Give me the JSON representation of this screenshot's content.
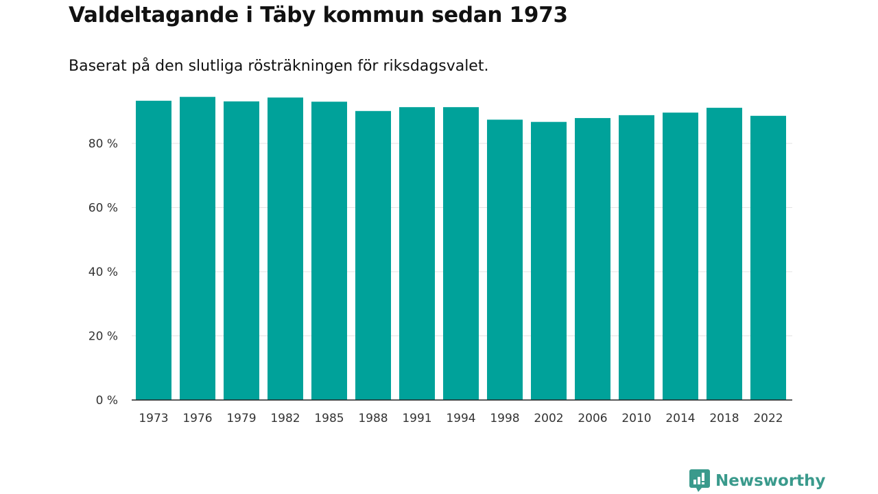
{
  "chart_data": {
    "type": "bar",
    "title": "Valdeltagande i Täby kommun sedan 1973",
    "subtitle": "Baserat på den slutliga rösträkningen för riksdagsvalet.",
    "xlabel": "",
    "ylabel": "",
    "categories": [
      "1973",
      "1976",
      "1979",
      "1982",
      "1985",
      "1988",
      "1991",
      "1994",
      "1998",
      "2002",
      "2006",
      "2010",
      "2014",
      "2018",
      "2022"
    ],
    "values": [
      93.3,
      94.5,
      93.1,
      94.3,
      93.0,
      90.1,
      91.3,
      91.3,
      87.4,
      86.7,
      87.9,
      88.8,
      89.6,
      91.1,
      88.6
    ],
    "ylim": [
      0,
      100
    ],
    "yticks": [
      0,
      20,
      40,
      60,
      80
    ],
    "ytick_labels": [
      "0 %",
      "20 %",
      "40 %",
      "60 %",
      "80 %"
    ],
    "grid": true,
    "bar_color": "#00a29a"
  },
  "brand": {
    "name": "Newsworthy",
    "color": "#3a9a8c"
  }
}
